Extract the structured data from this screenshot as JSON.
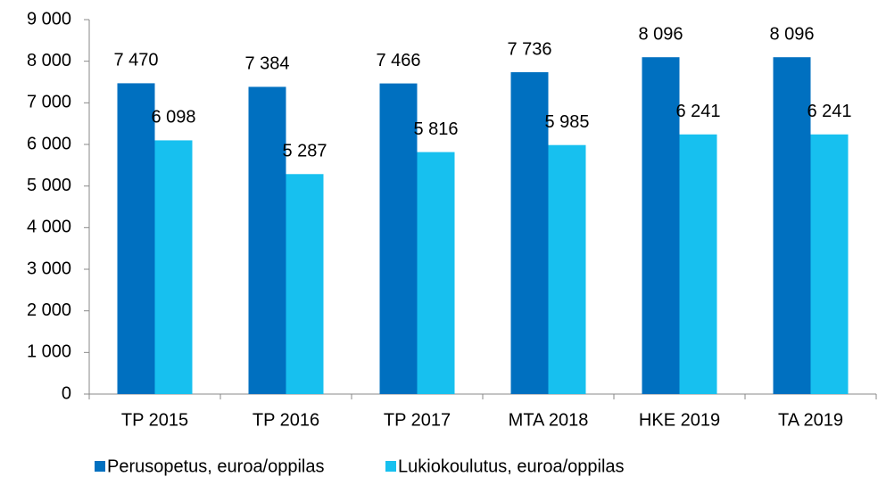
{
  "chart_data": {
    "type": "bar",
    "categories": [
      "TP 2015",
      "TP 2016",
      "TP 2017",
      "MTA 2018",
      "HKE 2019",
      "TA 2019"
    ],
    "series": [
      {
        "name": "Perusopetus, euroa/oppilas",
        "color": "#0070c0",
        "values": [
          7470,
          7384,
          7466,
          7736,
          8096,
          8096
        ],
        "value_labels": [
          "7 470",
          "7 384",
          "7 466",
          "7 736",
          "8 096",
          "8 096"
        ]
      },
      {
        "name": "Lukiokoulutus, euroa/oppilas",
        "color": "#17c0ef",
        "values": [
          6098,
          5287,
          5816,
          5985,
          6241,
          6241
        ],
        "value_labels": [
          "6 098",
          "5 287",
          "5 816",
          "5 985",
          "6 241",
          "6 241"
        ]
      }
    ],
    "ylim": [
      0,
      9000
    ],
    "yticks": [
      0,
      {
        "value": 1000,
        "label": "1 000"
      },
      {
        "value": 2000,
        "label": "2 000"
      },
      {
        "value": 3000,
        "label": "3 000"
      },
      {
        "value": 4000,
        "label": "4 000"
      },
      {
        "value": 5000,
        "label": "5 000"
      },
      {
        "value": 6000,
        "label": "6 000"
      },
      {
        "value": 7000,
        "label": "7 000"
      },
      {
        "value": 8000,
        "label": "8 000"
      },
      {
        "value": 9000,
        "label": "9 000"
      }
    ],
    "grid": false,
    "legend": "bottom"
  }
}
